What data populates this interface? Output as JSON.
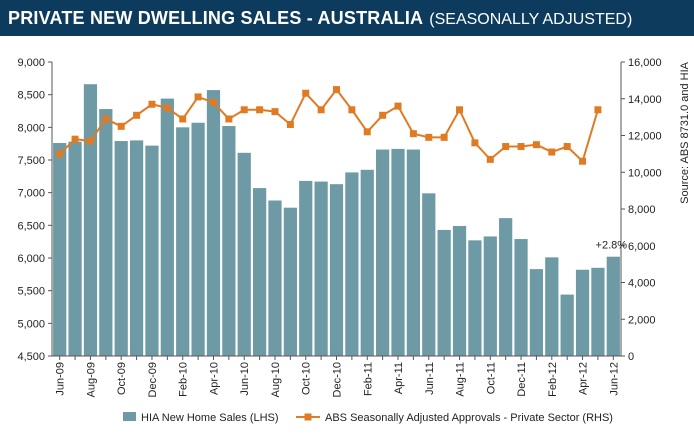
{
  "header": {
    "title_bold": "PRIVATE NEW DWELLING SALES -  AUSTRALIA",
    "title_rest": "(SEASONALLY ADJUSTED)"
  },
  "colors": {
    "header_bg": "#0d3b5e",
    "bars": "#6e9aa6",
    "line": "#e07b24"
  },
  "chart_data": {
    "type": "bar+line",
    "categories": [
      "Jun-09",
      "Jul-09",
      "Aug-09",
      "Sep-09",
      "Oct-09",
      "Nov-09",
      "Dec-09",
      "Jan-10",
      "Feb-10",
      "Mar-10",
      "Apr-10",
      "May-10",
      "Jun-10",
      "Jul-10",
      "Aug-10",
      "Sep-10",
      "Oct-10",
      "Nov-10",
      "Dec-10",
      "Jan-11",
      "Feb-11",
      "Mar-11",
      "Apr-11",
      "May-11",
      "Jun-11",
      "Jul-11",
      "Aug-11",
      "Sep-11",
      "Oct-11",
      "Nov-11",
      "Dec-11",
      "Jan-12",
      "Feb-12",
      "Mar-12",
      "Apr-12",
      "May-12",
      "Jun-12"
    ],
    "x_tick_labels": [
      "Jun-09",
      "Aug-09",
      "Oct-09",
      "Dec-09",
      "Feb-10",
      "Apr-10",
      "Jun-10",
      "Aug-10",
      "Oct-10",
      "Dec-10",
      "Feb-11",
      "Apr-11",
      "Jun-11",
      "Aug-11",
      "Oct-11",
      "Dec-11",
      "Feb-12",
      "Apr-12",
      "Jun-12"
    ],
    "series": [
      {
        "name": "HIA New Home Sales (LHS)",
        "kind": "bar",
        "axis": "left",
        "values": [
          7760,
          7780,
          8660,
          8280,
          7790,
          7800,
          7720,
          8440,
          8000,
          8070,
          8570,
          8020,
          7610,
          7070,
          6880,
          6770,
          7180,
          7170,
          7130,
          7310,
          7350,
          7660,
          7670,
          7660,
          6990,
          6430,
          6490,
          6270,
          6330,
          6610,
          6290,
          5830,
          6010,
          5440,
          5820,
          5850,
          6020
        ]
      },
      {
        "name": "ABS Seasonally Adjusted Approvals - Private Sector (RHS)",
        "kind": "line",
        "axis": "right",
        "values": [
          11000,
          11800,
          11700,
          12900,
          12500,
          13100,
          13700,
          13500,
          12900,
          14100,
          13800,
          12900,
          13400,
          13400,
          13300,
          12600,
          14300,
          13400,
          14500,
          13400,
          12200,
          13100,
          13600,
          12100,
          11900,
          11900,
          13400,
          11600,
          10700,
          11400,
          11400,
          11500,
          11100,
          11400,
          10600,
          13400,
          null
        ]
      }
    ],
    "yleft": {
      "min": 4500,
      "max": 9000,
      "step": 500,
      "ticks": [
        "4,500",
        "5,000",
        "5,500",
        "6,000",
        "6,500",
        "7,000",
        "7,500",
        "8,000",
        "8,500",
        "9,000"
      ]
    },
    "yright": {
      "min": 0,
      "max": 16000,
      "step": 2000,
      "ticks": [
        "0",
        "2,000",
        "4,000",
        "6,000",
        "8,000",
        "10,000",
        "12,000",
        "14,000",
        "16,000"
      ]
    },
    "annotation": "+2.8%",
    "source_note": "Source: ABS 8731.0 and HIA",
    "legend": {
      "placement": "bottom"
    },
    "grid": false
  }
}
